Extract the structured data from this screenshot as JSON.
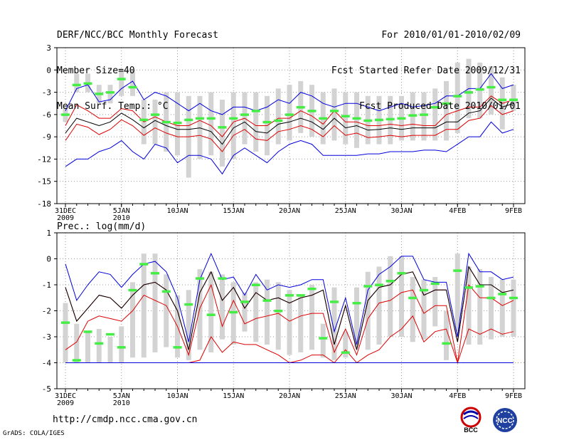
{
  "header": {
    "title": "DERF/NCC/BCC Monthly Forecast",
    "member_size": "Member Size=40",
    "variable": "Mean Surf. Temp.: °C",
    "period": "For 2010/01/01-2010/02/09",
    "fcst_started": "Fcst Started Refer Date 2009/12/31",
    "fcst_produced": "Fcst Produced Date 2010/01/01"
  },
  "footer": {
    "url": "http://cmdp.ncc.cma.gov.cn",
    "credit": "GrADS: COLA/IGES",
    "logo_bcc": "BCC",
    "logo_ncc": "NCC"
  },
  "colors": {
    "envelope": "#0000dd",
    "spread": "#dd0000",
    "mean": "#000000",
    "box": "#d3d3d3",
    "obs": "#44ee44",
    "grid": "#999999"
  },
  "chart_data": [
    {
      "type": "line",
      "title": "Mean Surf. Temp.: °C",
      "ylim": [
        -18,
        3
      ],
      "yticks": [
        3,
        0,
        -3,
        -6,
        -9,
        -12,
        -15,
        -18
      ],
      "x": [
        0,
        1,
        2,
        3,
        4,
        5,
        6,
        7,
        8,
        9,
        10,
        11,
        12,
        13,
        14,
        15,
        16,
        17,
        18,
        19,
        20,
        21,
        22,
        23,
        24,
        25,
        26,
        27,
        28,
        29,
        30,
        31,
        32,
        33,
        34,
        35,
        36,
        37,
        38,
        39,
        40
      ],
      "xtick_labels": [
        {
          "x": 0,
          "line1": "31DEC",
          "line2": "2009"
        },
        {
          "x": 5,
          "line1": "5JAN",
          "line2": "2010"
        },
        {
          "x": 10,
          "line1": "10JAN",
          "line2": ""
        },
        {
          "x": 15,
          "line1": "15JAN",
          "line2": ""
        },
        {
          "x": 20,
          "line1": "20JAN",
          "line2": ""
        },
        {
          "x": 25,
          "line1": "25JAN",
          "line2": ""
        },
        {
          "x": 30,
          "line1": "30JAN",
          "line2": ""
        },
        {
          "x": 35,
          "line1": "4FEB",
          "line2": ""
        },
        {
          "x": 40,
          "line1": "9FEB",
          "line2": ""
        }
      ],
      "series": [
        {
          "name": "max",
          "values": [
            -5.5,
            -2.5,
            -2,
            -4.3,
            -4,
            -2.5,
            -1.5,
            -4,
            -3,
            -3.5,
            -4.5,
            -5.5,
            -4.5,
            -5.5,
            -6,
            -5,
            -5,
            -5.5,
            -5,
            -4,
            -4.5,
            -3,
            -3.5,
            -4.5,
            -5,
            -4.5,
            -4.5,
            -5,
            -5.5,
            -5,
            -4.5,
            -5,
            -4.8,
            -4.5,
            -3.5,
            -3.5,
            -2.5,
            -2.5,
            -0.5,
            -2.5,
            -2
          ]
        },
        {
          "name": "upper",
          "values": [
            -7.5,
            -4.7,
            -5.5,
            -6.5,
            -6.5,
            -5.2,
            -5.5,
            -7,
            -6.3,
            -7,
            -7.5,
            -7.5,
            -6.8,
            -7.5,
            -9,
            -7,
            -6.5,
            -7.5,
            -7.5,
            -6.5,
            -6.5,
            -5.5,
            -6.2,
            -7.3,
            -5.5,
            -7,
            -7,
            -7.5,
            -7.5,
            -7.3,
            -7.5,
            -7.3,
            -7.5,
            -7.5,
            -6,
            -5.5,
            -5,
            -5,
            -3.5,
            -4.5,
            -4
          ]
        },
        {
          "name": "mean",
          "values": [
            -8.5,
            -6.5,
            -7,
            -7.5,
            -7,
            -5.8,
            -6.7,
            -7.8,
            -6.8,
            -7.5,
            -8,
            -8,
            -7.8,
            -8.3,
            -10,
            -7.8,
            -7,
            -8.3,
            -8.5,
            -7.3,
            -7,
            -6.5,
            -7,
            -8,
            -6.5,
            -7.8,
            -7.5,
            -8.1,
            -8,
            -7.8,
            -8,
            -7.8,
            -7.8,
            -7.8,
            -7,
            -7,
            -5.8,
            -5.5,
            -3.8,
            -5,
            -4.5
          ]
        },
        {
          "name": "lower",
          "values": [
            -9.5,
            -7.3,
            -7.7,
            -8.7,
            -8,
            -6.7,
            -7.5,
            -8.8,
            -7.8,
            -8.5,
            -9,
            -9,
            -8.8,
            -9.3,
            -11,
            -8.8,
            -8,
            -9.3,
            -9.5,
            -8.3,
            -8,
            -7.5,
            -8,
            -9,
            -7.5,
            -8.8,
            -8.5,
            -9.1,
            -9,
            -8.8,
            -9,
            -8.8,
            -8.8,
            -8.8,
            -8,
            -8,
            -6.8,
            -6.5,
            -4.8,
            -6,
            -5.5
          ]
        },
        {
          "name": "min",
          "values": [
            -13,
            -12,
            -12,
            -11,
            -10.5,
            -9.5,
            -11,
            -12,
            -10,
            -10.5,
            -12.5,
            -11.5,
            -11.5,
            -12,
            -14,
            -11.5,
            -10.5,
            -11.5,
            -12.5,
            -11,
            -10,
            -9.5,
            -10,
            -11.5,
            -11.5,
            -11.5,
            -11.5,
            -11.3,
            -11.3,
            -11,
            -11,
            -11,
            -10.8,
            -10.8,
            -11,
            -10,
            -9,
            -9,
            -7,
            -8.5,
            -8
          ]
        },
        {
          "name": "observed",
          "values": [
            -6,
            -2,
            -1.8,
            -3.2,
            -3,
            -1.2,
            -2.3,
            -6.7,
            -6,
            -7,
            -7.1,
            -6.7,
            -6.5,
            -6.5,
            -7.7,
            -6.5,
            -6,
            -5.5,
            -7,
            -6.8,
            -6,
            -5,
            -5.5,
            -6.5,
            -5.5,
            -6.2,
            -6.5,
            -6.8,
            -6.7,
            -6.6,
            -6.5,
            -6.1,
            -6,
            -5,
            -4.5,
            -3.5,
            -3,
            -2.6,
            -2.3,
            -4,
            -4
          ]
        }
      ],
      "box_ranges": [
        [
          -7,
          -5
        ],
        [
          -3,
          -0.5
        ],
        [
          -3,
          -0.5
        ],
        [
          -4.5,
          -2
        ],
        [
          -4.5,
          -2
        ],
        [
          -3.5,
          0
        ],
        [
          -3.5,
          0
        ],
        [
          -10,
          -4
        ],
        [
          -10,
          -4
        ],
        [
          -11,
          -3
        ],
        [
          -11.5,
          -3
        ],
        [
          -14.5,
          -3.5
        ],
        [
          -12,
          -3.5
        ],
        [
          -11.5,
          -3
        ],
        [
          -13,
          -4
        ],
        [
          -12,
          -3
        ],
        [
          -10,
          -3
        ],
        [
          -11,
          -3
        ],
        [
          -11.5,
          -3.5
        ],
        [
          -10,
          -2.5
        ],
        [
          -9.5,
          -2
        ],
        [
          -8.5,
          -1.5
        ],
        [
          -9,
          -2
        ],
        [
          -10,
          -3
        ],
        [
          -9.5,
          -2.5
        ],
        [
          -10,
          -3
        ],
        [
          -10.5,
          -3
        ],
        [
          -10,
          -3.5
        ],
        [
          -10,
          -3.5
        ],
        [
          -10,
          -3.5
        ],
        [
          -9.5,
          -3.5
        ],
        [
          -9.5,
          -3
        ],
        [
          -9.5,
          -3
        ],
        [
          -9.5,
          -2.5
        ],
        [
          -9.5,
          -1.5
        ],
        [
          -8.5,
          1
        ],
        [
          -6.5,
          1.5
        ],
        [
          -6.5,
          1
        ],
        [
          -6,
          0.5
        ],
        [
          -8,
          -1
        ],
        [
          -5.5,
          -2
        ]
      ]
    },
    {
      "type": "line",
      "title": "Prec.: log(mm/d)",
      "ylim": [
        -5,
        1
      ],
      "yticks": [
        1,
        0,
        -1,
        -2,
        -3,
        -4,
        -5
      ],
      "x": [
        0,
        1,
        2,
        3,
        4,
        5,
        6,
        7,
        8,
        9,
        10,
        11,
        12,
        13,
        14,
        15,
        16,
        17,
        18,
        19,
        20,
        21,
        22,
        23,
        24,
        25,
        26,
        27,
        28,
        29,
        30,
        31,
        32,
        33,
        34,
        35,
        36,
        37,
        38,
        39,
        40
      ],
      "xtick_labels": [
        {
          "x": 0,
          "line1": "31DEC",
          "line2": "2009"
        },
        {
          "x": 5,
          "line1": "5JAN",
          "line2": "2010"
        },
        {
          "x": 10,
          "line1": "10JAN",
          "line2": ""
        },
        {
          "x": 15,
          "line1": "15JAN",
          "line2": ""
        },
        {
          "x": 20,
          "line1": "20JAN",
          "line2": ""
        },
        {
          "x": 25,
          "line1": "25JAN",
          "line2": ""
        },
        {
          "x": 30,
          "line1": "30JAN",
          "line2": ""
        },
        {
          "x": 35,
          "line1": "4FEB",
          "line2": ""
        },
        {
          "x": 40,
          "line1": "9FEB",
          "line2": ""
        }
      ],
      "series": [
        {
          "name": "max",
          "values": [
            -0.2,
            -1.6,
            -1.0,
            -0.5,
            -0.6,
            -1.1,
            -0.6,
            -0.2,
            -0.1,
            -0.5,
            -1.5,
            -3.2,
            -0.8,
            0.2,
            -0.8,
            -0.7,
            -1.4,
            -0.6,
            -1.2,
            -1.0,
            -1.1,
            -1.0,
            -0.8,
            -0.8,
            -2.8,
            -1.5,
            -3.3,
            -1.2,
            -0.6,
            -0.3,
            0.1,
            0.1,
            -0.8,
            -0.9,
            -0.9,
            -3.0,
            0.2,
            -0.5,
            -0.5,
            -0.8,
            -0.7
          ]
        },
        {
          "name": "upper",
          "values": [
            -1.1,
            -2.4,
            -1.9,
            -1.4,
            -1.5,
            -1.9,
            -1.4,
            -1.0,
            -0.9,
            -1.2,
            -2.0,
            -3.5,
            -1.3,
            -0.5,
            -1.6,
            -1.1,
            -1.9,
            -1.3,
            -1.6,
            -1.5,
            -1.7,
            -1.5,
            -1.4,
            -1.2,
            -3.3,
            -1.8,
            -3.5,
            -1.6,
            -1.1,
            -1.0,
            -0.6,
            -0.5,
            -1.4,
            -1.2,
            -1.2,
            -3.2,
            -0.3,
            -1.0,
            -1.0,
            -1.3,
            -1.2
          ]
        },
        {
          "name": "mean",
          "values": [
            -1.1,
            -2.4,
            -1.9,
            -1.4,
            -1.5,
            -1.9,
            -1.4,
            -1.0,
            -0.9,
            -1.2,
            -2.0,
            -3.5,
            -1.3,
            -0.5,
            -1.6,
            -1.1,
            -1.9,
            -1.3,
            -1.6,
            -1.5,
            -1.7,
            -1.5,
            -1.4,
            -1.2,
            -3.3,
            -1.8,
            -3.5,
            -1.6,
            -1.1,
            -1.0,
            -0.6,
            -0.5,
            -1.4,
            -1.2,
            -1.2,
            -3.2,
            -0.3,
            -1.0,
            -1.0,
            -1.3,
            -1.2
          ]
        },
        {
          "name": "lower",
          "values": [
            -3.5,
            -3.2,
            -2.4,
            -2.2,
            -2.3,
            -2.4,
            -2.0,
            -1.4,
            -1.6,
            -1.8,
            -2.6,
            -3.7,
            -1.9,
            -1.0,
            -2.6,
            -1.6,
            -2.5,
            -2.3,
            -2.2,
            -2.1,
            -2.4,
            -2.2,
            -2.1,
            -2.1,
            -3.6,
            -2.7,
            -3.7,
            -2.3,
            -1.7,
            -1.6,
            -1.3,
            -1.2,
            -2.1,
            -1.8,
            -1.8,
            -4.0,
            -1.0,
            -1.5,
            -1.5,
            -1.8,
            -1.6
          ]
        },
        {
          "name": "lowest",
          "values": [
            -4.0,
            -4.0,
            -4.0,
            -4.0,
            -4.0,
            -4.0,
            -4.0,
            -4.0,
            -4.0,
            -4.0,
            -4.0,
            -4.0,
            -3.9,
            -3.0,
            -3.6,
            -3.2,
            -3.3,
            -3.3,
            -3.5,
            -3.7,
            -4.0,
            -3.9,
            -3.7,
            -3.7,
            -4.0,
            -3.5,
            -4.0,
            -3.7,
            -3.5,
            -3.0,
            -2.7,
            -2.2,
            -3.2,
            -2.8,
            -2.7,
            -4.0,
            -2.7,
            -2.9,
            -2.7,
            -2.9,
            -2.8
          ]
        },
        {
          "name": "min",
          "values": [
            -4,
            -4,
            -4,
            -4,
            -4,
            -4,
            -4,
            -4,
            -4,
            -4,
            -4,
            -4,
            -4,
            -4,
            -4,
            -4,
            -4,
            -4,
            -4,
            -4,
            -4,
            -4,
            -4,
            -4,
            -4,
            -4,
            -4,
            -4,
            -4,
            -4,
            -4,
            -4,
            -4,
            -4,
            -4,
            -4,
            -4,
            -4,
            -4,
            -4,
            -4
          ]
        },
        {
          "name": "observed",
          "values": [
            -2.45,
            -3.9,
            -2.8,
            -3.25,
            -2.9,
            -3.4,
            -1.2,
            -0.2,
            -0.55,
            -1.25,
            -3.4,
            -1.75,
            -0.75,
            -2.15,
            -0.75,
            -2.05,
            -1.65,
            -1.0,
            -1.6,
            -2.0,
            -1.4,
            -1.4,
            -1.15,
            -3.05,
            -1.65,
            -3.6,
            -1.7,
            -1.05,
            -1.0,
            -0.85,
            -0.55,
            -1.5,
            -1.2,
            -0.95,
            -3.25,
            -0.45,
            -1.1,
            -1.05,
            -1.5,
            -1.35,
            -1.5
          ]
        }
      ],
      "box_ranges": [
        [
          -4,
          -1.7
        ],
        [
          -4,
          -2.5
        ],
        [
          -4,
          -2.8
        ],
        [
          -4,
          -2.7
        ],
        [
          -4,
          -3.0
        ],
        [
          -4,
          -2.6
        ],
        [
          -3.8,
          -0.9
        ],
        [
          -3.8,
          0.2
        ],
        [
          -3.6,
          0.2
        ],
        [
          -3.4,
          -0.6
        ],
        [
          -3.8,
          -1.4
        ],
        [
          -3.9,
          -1.2
        ],
        [
          -3.5,
          -0.4
        ],
        [
          -3.6,
          -0.5
        ],
        [
          -3.1,
          -0.6
        ],
        [
          -3.3,
          -0.9
        ],
        [
          -2.8,
          -1.3
        ],
        [
          -3.2,
          -0.9
        ],
        [
          -3.3,
          -0.8
        ],
        [
          -3.5,
          -0.9
        ],
        [
          -3.7,
          -1.2
        ],
        [
          -3.6,
          -1.4
        ],
        [
          -3.5,
          -1.0
        ],
        [
          -3.8,
          -2.5
        ],
        [
          -3.9,
          -1.1
        ],
        [
          -3.8,
          -2.8
        ],
        [
          -3.4,
          -1.1
        ],
        [
          -3.5,
          -0.5
        ],
        [
          -3.3,
          -0.3
        ],
        [
          -3.0,
          0.1
        ],
        [
          -3.0,
          0.1
        ],
        [
          -3.2,
          -0.7
        ],
        [
          -3.1,
          -0.8
        ],
        [
          -2.6,
          -0.7
        ],
        [
          -3.9,
          -2.0
        ],
        [
          -2.8,
          0.2
        ],
        [
          -3.3,
          -0.3
        ],
        [
          -3.3,
          -0.4
        ],
        [
          -3.1,
          -0.7
        ],
        [
          -3.0,
          -0.8
        ],
        [
          -3.0,
          -0.8
        ]
      ]
    }
  ]
}
